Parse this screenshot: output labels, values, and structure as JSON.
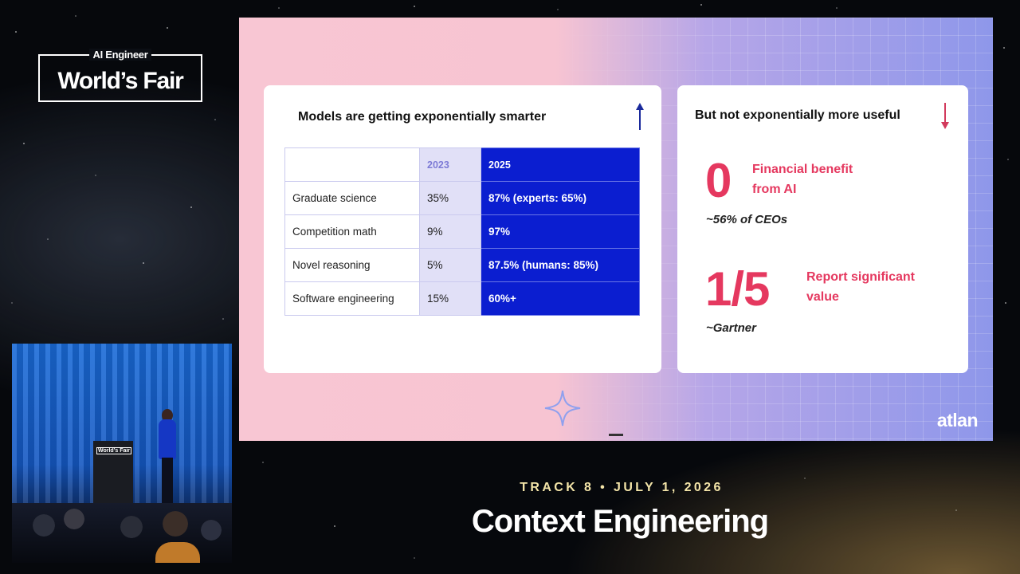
{
  "event_logo": {
    "top_text": "AI Engineer",
    "main_text": "World’s Fair"
  },
  "slide": {
    "left_card": {
      "title": "Models are getting exponentially smarter",
      "arrow": "up-arrow-icon",
      "table": {
        "headers": [
          "",
          "2023",
          "2025"
        ],
        "rows": [
          [
            "Graduate science",
            "35%",
            "87% (experts: 65%)"
          ],
          [
            "Competition math",
            "9%",
            "97%"
          ],
          [
            "Novel reasoning",
            "5%",
            "87.5% (humans: 85%)"
          ],
          [
            "Software engineering",
            "15%",
            "60%+"
          ]
        ]
      }
    },
    "right_card": {
      "title": "But not exponentially more useful",
      "arrow": "down-arrow-icon",
      "stats": [
        {
          "value": "0",
          "label_line1": "Financial benefit",
          "label_line2": "from AI",
          "source": "~56% of CEOs"
        },
        {
          "value": "1/5",
          "label_line1": "Report significant",
          "label_line2": "value",
          "source": "~Gartner"
        }
      ]
    },
    "brand": "atlan",
    "colors": {
      "accent_blue": "#0b1ed0",
      "accent_red": "#e5385f",
      "arrow_up": "#1a2a9c",
      "arrow_down": "#d23a5c"
    }
  },
  "camera": {
    "podium_label": "World’s Fair"
  },
  "lower_third": {
    "track_line": "TRACK 8 • JULY 1, 2026",
    "session_title": "Context Engineering"
  }
}
